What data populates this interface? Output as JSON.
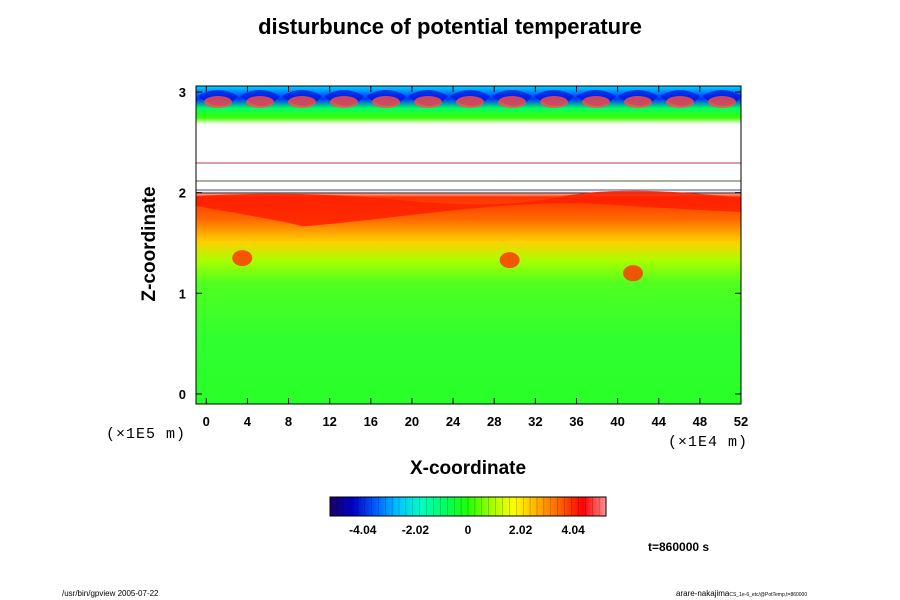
{
  "chart_data": {
    "type": "heatmap",
    "title": "disturbunce of potential temperature",
    "xlabel": "X-coordinate",
    "ylabel": "Z-coordinate",
    "x_unit_label": "(×1E4 m)",
    "y_unit_label": "(×1E5 m)",
    "xlim": [
      -1,
      52
    ],
    "ylim": [
      -0.1,
      3.06
    ],
    "x_ticks": [
      "0",
      "4",
      "8",
      "12",
      "16",
      "20",
      "24",
      "28",
      "32",
      "36",
      "40",
      "44",
      "48",
      "52"
    ],
    "y_ticks": [
      "0",
      "1",
      "2",
      "3"
    ],
    "colorbar": {
      "range": [
        -5.3,
        5.3
      ],
      "tick_labels": [
        "-4.04",
        "-2.02",
        "0",
        "2.02",
        "4.04"
      ],
      "tick_values": [
        -4.04,
        -2.02,
        0,
        2.02,
        4.04
      ],
      "colors": [
        "#1a0066",
        "#0000c8",
        "#0060ff",
        "#00c8ff",
        "#00ffc0",
        "#00ff60",
        "#20ff00",
        "#a0ff00",
        "#ffff00",
        "#ffb000",
        "#ff6000",
        "#ff0000",
        "#ff9090"
      ]
    },
    "regions": [
      {
        "z": [
          0.0,
          1.6
        ],
        "value": 0.0,
        "description": "near-neutral green field"
      },
      {
        "z": [
          1.6,
          2.0
        ],
        "value": 3.5,
        "description": "warm (red/orange) layer"
      },
      {
        "z": [
          2.0,
          2.65
        ],
        "value": null,
        "description": "undefined (white) band"
      },
      {
        "z": [
          2.65,
          3.06
        ],
        "value": -3.0,
        "description": "cold (blue) top layer"
      }
    ],
    "features": [
      {
        "x": 3.5,
        "z": 1.35,
        "value": 4.0
      },
      {
        "x": 29.5,
        "z": 1.33,
        "value": 4.0
      },
      {
        "x": 41.5,
        "z": 1.2,
        "value": 3.0
      }
    ]
  },
  "time_label": "t=860000 s",
  "footer_left": "/usr/bin/gpview 2005-07-22",
  "footer_right": "arare-nakajima",
  "footer_right_small": "CS_1e-6_etc/@PotTemp,t=860000"
}
